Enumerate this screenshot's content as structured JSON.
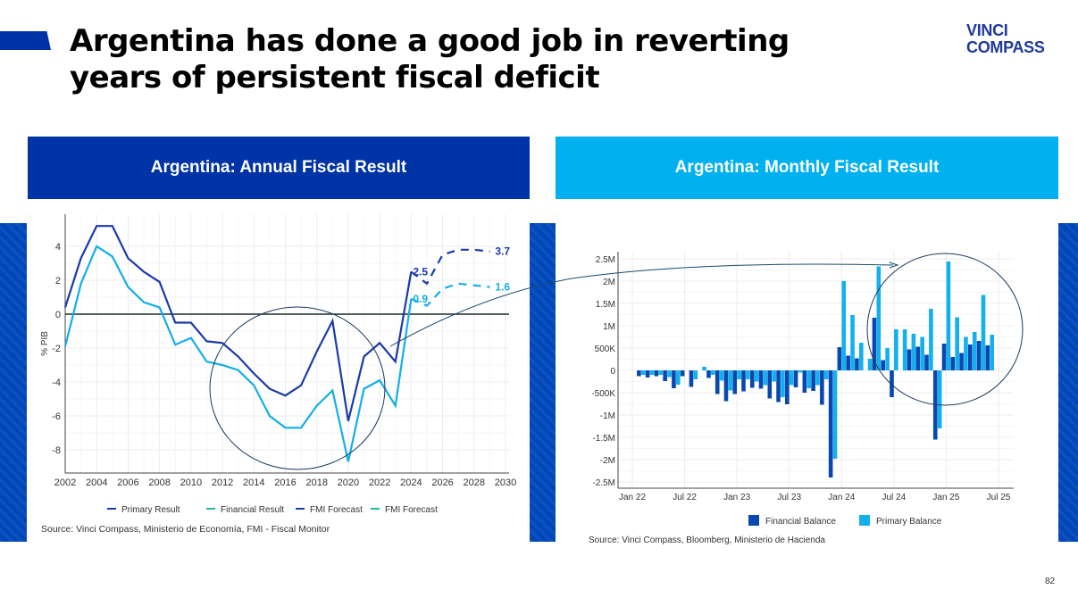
{
  "title": "Argentina has done a good job in reverting years of persistent fiscal deficit",
  "logo": {
    "line1": "VINCI",
    "line2": "COMPASS"
  },
  "page_number": "82",
  "colors": {
    "dark_blue": "#0033a6",
    "light_blue": "#00b0f0",
    "primary": "#1a3aa8",
    "financial": "#13aee8"
  },
  "chart_data": [
    {
      "type": "line",
      "header": "Argentina: Annual Fiscal Result",
      "ylabel": "% PIB",
      "xlabel": "",
      "ylim": [
        -9.3,
        5.8
      ],
      "xlim": [
        2002,
        2030
      ],
      "x_ticks": [
        "2002",
        "2004",
        "2006",
        "2008",
        "2010",
        "2012",
        "2014",
        "2016",
        "2018",
        "2020",
        "2022",
        "2024",
        "2026",
        "2028",
        "2030"
      ],
      "y_ticks": [
        "4",
        "2",
        "0",
        "-2",
        "-4",
        "-6",
        "-8"
      ],
      "grid": true,
      "legend_position": "bottom",
      "series": [
        {
          "name": "Primary Result",
          "style": "solid",
          "x": [
            2002,
            2003,
            2004,
            2005,
            2006,
            2007,
            2008,
            2009,
            2010,
            2011,
            2012,
            2013,
            2014,
            2015,
            2016,
            2017,
            2018,
            2019,
            2020,
            2021,
            2022,
            2023,
            2024
          ],
          "values": [
            0.4,
            3.3,
            5.2,
            5.2,
            3.3,
            2.5,
            1.9,
            -0.5,
            -0.5,
            -1.6,
            -1.7,
            -2.5,
            -3.5,
            -4.4,
            -4.8,
            -4.2,
            -2.2,
            -0.4,
            -6.3,
            -2.5,
            -1.7,
            -2.8,
            2.5
          ]
        },
        {
          "name": "Financial Result",
          "style": "solid",
          "x": [
            2002,
            2003,
            2004,
            2005,
            2006,
            2007,
            2008,
            2009,
            2010,
            2011,
            2012,
            2013,
            2014,
            2015,
            2016,
            2017,
            2018,
            2019,
            2020,
            2021,
            2022,
            2023,
            2024
          ],
          "values": [
            -1.9,
            1.8,
            4.0,
            3.4,
            1.6,
            0.7,
            0.4,
            -1.8,
            -1.4,
            -2.8,
            -3.0,
            -3.3,
            -4.2,
            -6.0,
            -6.7,
            -6.7,
            -5.4,
            -4.5,
            -8.7,
            -4.4,
            -3.9,
            -5.4,
            0.9
          ]
        },
        {
          "name": "FMI Forecast",
          "style": "dashed",
          "x": [
            2024,
            2025,
            2026,
            2027,
            2028,
            2029
          ],
          "values": [
            2.5,
            1.8,
            3.5,
            3.8,
            3.8,
            3.7
          ]
        },
        {
          "name": "FMI Forecast",
          "style": "dashed",
          "x": [
            2024,
            2025,
            2026,
            2027,
            2028,
            2029
          ],
          "values": [
            0.9,
            0.5,
            1.5,
            1.8,
            1.7,
            1.6
          ]
        }
      ],
      "data_labels": [
        "2.5",
        "0.9",
        "3.7",
        "1.6"
      ],
      "source": "Source: Vinci Compass, Ministerio de Economía, FMI - Fiscal Monitor"
    },
    {
      "type": "bar",
      "header": "Argentina: Monthly Fiscal Result",
      "ylim": [
        -2500000,
        2500000
      ],
      "y_ticks": [
        "2.5M",
        "2M",
        "1.5M",
        "1M",
        "500K",
        "0",
        "-500K",
        "-1M",
        "-1.5M",
        "-2M",
        "-2.5M"
      ],
      "x_ticks": [
        "Jan 22",
        "Jul 22",
        "Jan 23",
        "Jul 23",
        "Jan 24",
        "Jul 24",
        "Jan 25",
        "Jul 25"
      ],
      "grid": true,
      "legend_position": "bottom",
      "categories": [
        "Feb 22",
        "Mar 22",
        "Apr 22",
        "May 22",
        "Jun 22",
        "Jul 22",
        "Aug 22",
        "Sep 22",
        "Oct 22",
        "Nov 22",
        "Dec 22",
        "Jan 23",
        "Feb 23",
        "Mar 23",
        "Apr 23",
        "May 23",
        "Jun 23",
        "Jul 23",
        "Aug 23",
        "Sep 23",
        "Oct 23",
        "Nov 23",
        "Dec 23",
        "Jan 24",
        "Feb 24",
        "Mar 24",
        "Apr 24",
        "May 24",
        "Jun 24",
        "Jul 24",
        "Aug 24",
        "Sep 24",
        "Oct 24",
        "Nov 24",
        "Dec 24",
        "Jan 25",
        "Feb 25",
        "Mar 25",
        "Apr 25",
        "May 25",
        "Jun 25"
      ],
      "series": [
        {
          "name": "Financial Balance",
          "values": [
            -130000,
            -160000,
            -130000,
            -240000,
            -400000,
            -130000,
            -370000,
            0,
            -170000,
            -530000,
            -690000,
            -530000,
            -470000,
            -390000,
            -410000,
            -630000,
            -710000,
            -760000,
            -380000,
            -500000,
            -460000,
            -770000,
            -2400000,
            520000,
            330000,
            270000,
            0,
            1180000,
            230000,
            -600000,
            0,
            470000,
            530000,
            350000,
            -1550000,
            600000,
            300000,
            390000,
            580000,
            660000,
            560000
          ]
        },
        {
          "name": "Primary Balance",
          "values": [
            -100000,
            -100000,
            -100000,
            -150000,
            -320000,
            0,
            -200000,
            80000,
            -100000,
            -230000,
            -450000,
            -200000,
            -200000,
            -250000,
            -330000,
            -250000,
            -600000,
            -330000,
            -50000,
            -400000,
            -330000,
            -200000,
            -1980000,
            2000000,
            1240000,
            620000,
            260000,
            2330000,
            500000,
            920000,
            920000,
            820000,
            750000,
            1380000,
            -1300000,
            2440000,
            1190000,
            750000,
            860000,
            1690000,
            800000
          ]
        }
      ],
      "source": "Source: Vinci Compass, Bloomberg, Ministerio de Hacienda"
    }
  ]
}
